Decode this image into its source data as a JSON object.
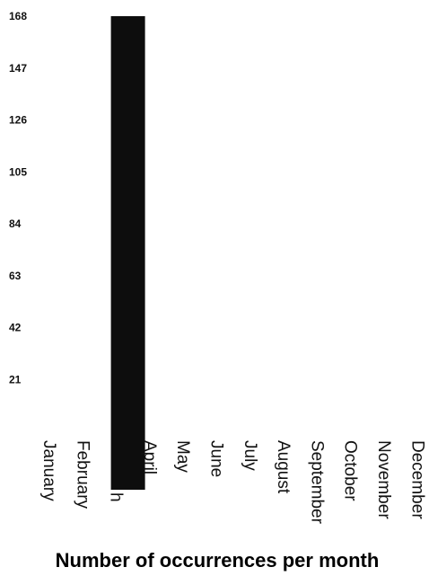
{
  "chart_data": {
    "type": "bar",
    "title": "",
    "caption": "Number of occurrences per month",
    "xlabel": "",
    "ylabel": "",
    "categories": [
      "January",
      "February",
      "March",
      "April",
      "May",
      "June",
      "July",
      "August",
      "September",
      "October",
      "November",
      "December"
    ],
    "category_labels_shown": [
      "January",
      "February",
      "h",
      "April",
      "May",
      "June",
      "July",
      "August",
      "September",
      "October",
      "November",
      "December"
    ],
    "values": [
      0,
      0,
      168,
      0,
      0,
      0,
      0,
      0,
      0,
      0,
      0,
      0
    ],
    "yticks": [
      21,
      42,
      63,
      84,
      105,
      126,
      147,
      168
    ],
    "ylim": [
      0,
      168
    ],
    "grid": false,
    "legend": "none",
    "colors": {
      "bar": "#0d0d0d",
      "text": "#111111"
    }
  }
}
